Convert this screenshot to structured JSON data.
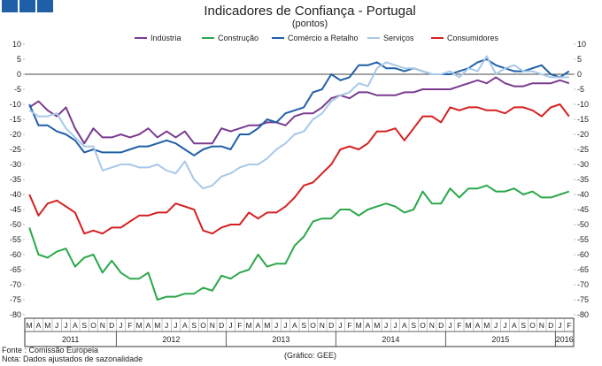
{
  "chart_data": {
    "type": "line",
    "title": "Indicadores de Confiança - Portugal",
    "subtitle": "(pontos)",
    "ylim": [
      -80,
      10
    ],
    "yticks": [
      10,
      5,
      0,
      -5,
      -10,
      -15,
      -20,
      -25,
      -30,
      -35,
      -40,
      -45,
      -50,
      -55,
      -60,
      -65,
      -70,
      -75,
      -80
    ],
    "months": [
      "M",
      "A",
      "M",
      "J",
      "J",
      "A",
      "S",
      "O",
      "N",
      "D",
      "J",
      "F",
      "M",
      "A",
      "M",
      "J",
      "J",
      "A",
      "S",
      "O",
      "N",
      "D",
      "J",
      "F",
      "M",
      "A",
      "M",
      "J",
      "J",
      "A",
      "S",
      "O",
      "N",
      "D",
      "J",
      "F",
      "M",
      "A",
      "M",
      "J",
      "J",
      "A",
      "S",
      "O",
      "N",
      "D",
      "J",
      "F",
      "M",
      "A",
      "M",
      "J",
      "J",
      "A",
      "S",
      "O",
      "N",
      "D",
      "J",
      "F"
    ],
    "years": [
      {
        "label": "2011",
        "start": 0,
        "count": 10
      },
      {
        "label": "2012",
        "start": 10,
        "count": 12
      },
      {
        "label": "2013",
        "start": 22,
        "count": 12
      },
      {
        "label": "2014",
        "start": 34,
        "count": 12
      },
      {
        "label": "2015",
        "start": 46,
        "count": 12
      },
      {
        "label": "2016",
        "start": 58,
        "count": 2
      }
    ],
    "series": [
      {
        "name": "Indústria",
        "color": "#7a3b8f",
        "values": [
          -11,
          -9,
          -12,
          -14,
          -11,
          -18,
          -23,
          -18,
          -21,
          -21,
          -20,
          -21,
          -20,
          -18,
          -21,
          -19,
          -21,
          -19,
          -23,
          -23,
          -23,
          -18,
          -19,
          -18,
          -17,
          -17,
          -16,
          -16,
          -17,
          -14,
          -13,
          -13,
          -11,
          -8,
          -7,
          -8,
          -6,
          -6,
          -7,
          -7,
          -7,
          -6,
          -6,
          -5,
          -5,
          -5,
          -5,
          -4,
          -3,
          -2,
          -3,
          -1,
          -3,
          -4,
          -4,
          -3,
          -3,
          -3,
          -2,
          -3
        ]
      },
      {
        "name": "Construção",
        "color": "#2aa84a",
        "values": [
          -51,
          -60,
          -61,
          -59,
          -58,
          -64,
          -61,
          -60,
          -66,
          -62,
          -66,
          -68,
          -68,
          -66,
          -75,
          -74,
          -74,
          -73,
          -73,
          -71,
          -72,
          -67,
          -68,
          -66,
          -65,
          -60,
          -64,
          -63,
          -63,
          -57,
          -54,
          -49,
          -48,
          -48,
          -45,
          -45,
          -47,
          -45,
          -44,
          -43,
          -44,
          -46,
          -45,
          -39,
          -43,
          -43,
          -38,
          -41,
          -38,
          -38,
          -37,
          -39,
          -39,
          -38,
          -40,
          -39,
          -41,
          -41,
          -40,
          -39
        ]
      },
      {
        "name": "Comércio a Retalho",
        "color": "#1f5fa8",
        "values": [
          -10,
          -17,
          -17,
          -19,
          -20,
          -22,
          -26,
          -25,
          -26,
          -26,
          -26,
          -25,
          -24,
          -24,
          -23,
          -22,
          -23,
          -25,
          -27,
          -25,
          -24,
          -24,
          -25,
          -20,
          -20,
          -18,
          -15,
          -16,
          -13,
          -12,
          -11,
          -6,
          -5,
          0,
          -2,
          -1,
          3,
          3,
          4,
          2,
          2,
          1,
          2,
          1,
          0,
          0,
          0,
          1,
          2,
          4,
          5,
          3,
          2,
          1,
          1,
          2,
          3,
          0,
          -1,
          1
        ]
      },
      {
        "name": "Serviços",
        "color": "#a8c8e8",
        "values": [
          -12,
          -14,
          -14,
          -13,
          -18,
          -21,
          -24,
          -24,
          -32,
          -31,
          -30,
          -30,
          -31,
          -31,
          -30,
          -32,
          -33,
          -29,
          -35,
          -38,
          -37,
          -34,
          -33,
          -31,
          -30,
          -30,
          -28,
          -25,
          -23,
          -20,
          -19,
          -15,
          -13,
          -9,
          -7,
          -6,
          -3,
          -4,
          2,
          4,
          3,
          2,
          2,
          1,
          0,
          0,
          1,
          -1,
          2,
          1,
          6,
          0,
          2,
          3,
          1,
          1,
          0,
          -1,
          -1,
          -1
        ]
      },
      {
        "name": "Consumidores",
        "color": "#d42020",
        "values": [
          -40,
          -47,
          -43,
          -42,
          -44,
          -46,
          -53,
          -52,
          -53,
          -51,
          -51,
          -49,
          -47,
          -47,
          -46,
          -46,
          -43,
          -44,
          -45,
          -52,
          -53,
          -51,
          -50,
          -50,
          -46,
          -48,
          -46,
          -46,
          -44,
          -41,
          -37,
          -36,
          -33,
          -30,
          -25,
          -24,
          -25,
          -23,
          -19,
          -19,
          -18,
          -22,
          -18,
          -14,
          -14,
          -16,
          -11,
          -12,
          -11,
          -11,
          -12,
          -12,
          -13,
          -11,
          -11,
          -12,
          -14,
          -11,
          -10,
          -14
        ]
      }
    ]
  },
  "footer": {
    "source": "Fonte : Comissão Europeia",
    "note": "Nota: Dados ajustados de sazonalidade",
    "credit": "(Gráfico: GEE)"
  }
}
